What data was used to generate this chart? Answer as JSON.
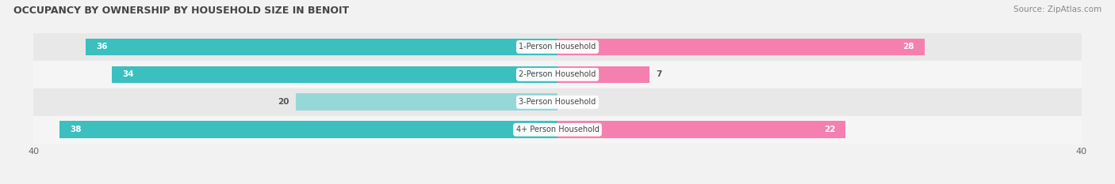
{
  "title": "OCCUPANCY BY OWNERSHIP BY HOUSEHOLD SIZE IN BENOIT",
  "source": "Source: ZipAtlas.com",
  "categories": [
    "1-Person Household",
    "2-Person Household",
    "3-Person Household",
    "4+ Person Household"
  ],
  "owner_values": [
    36,
    34,
    20,
    38
  ],
  "renter_values": [
    28,
    7,
    0,
    22
  ],
  "owner_color": "#3bbfbf",
  "renter_color": "#f580b0",
  "owner_light_color": "#96d8d8",
  "renter_light_color": "#f5b8d0",
  "axis_max": 40,
  "bar_height": 0.62,
  "label_thresh_owner": 10,
  "label_thresh_renter": 10,
  "figsize": [
    14.06,
    2.33
  ],
  "dpi": 100,
  "row_colors": [
    "#e8e8e8",
    "#f5f5f5",
    "#e8e8e8",
    "#f5f5f5"
  ],
  "bg_color": "#f2f2f2"
}
